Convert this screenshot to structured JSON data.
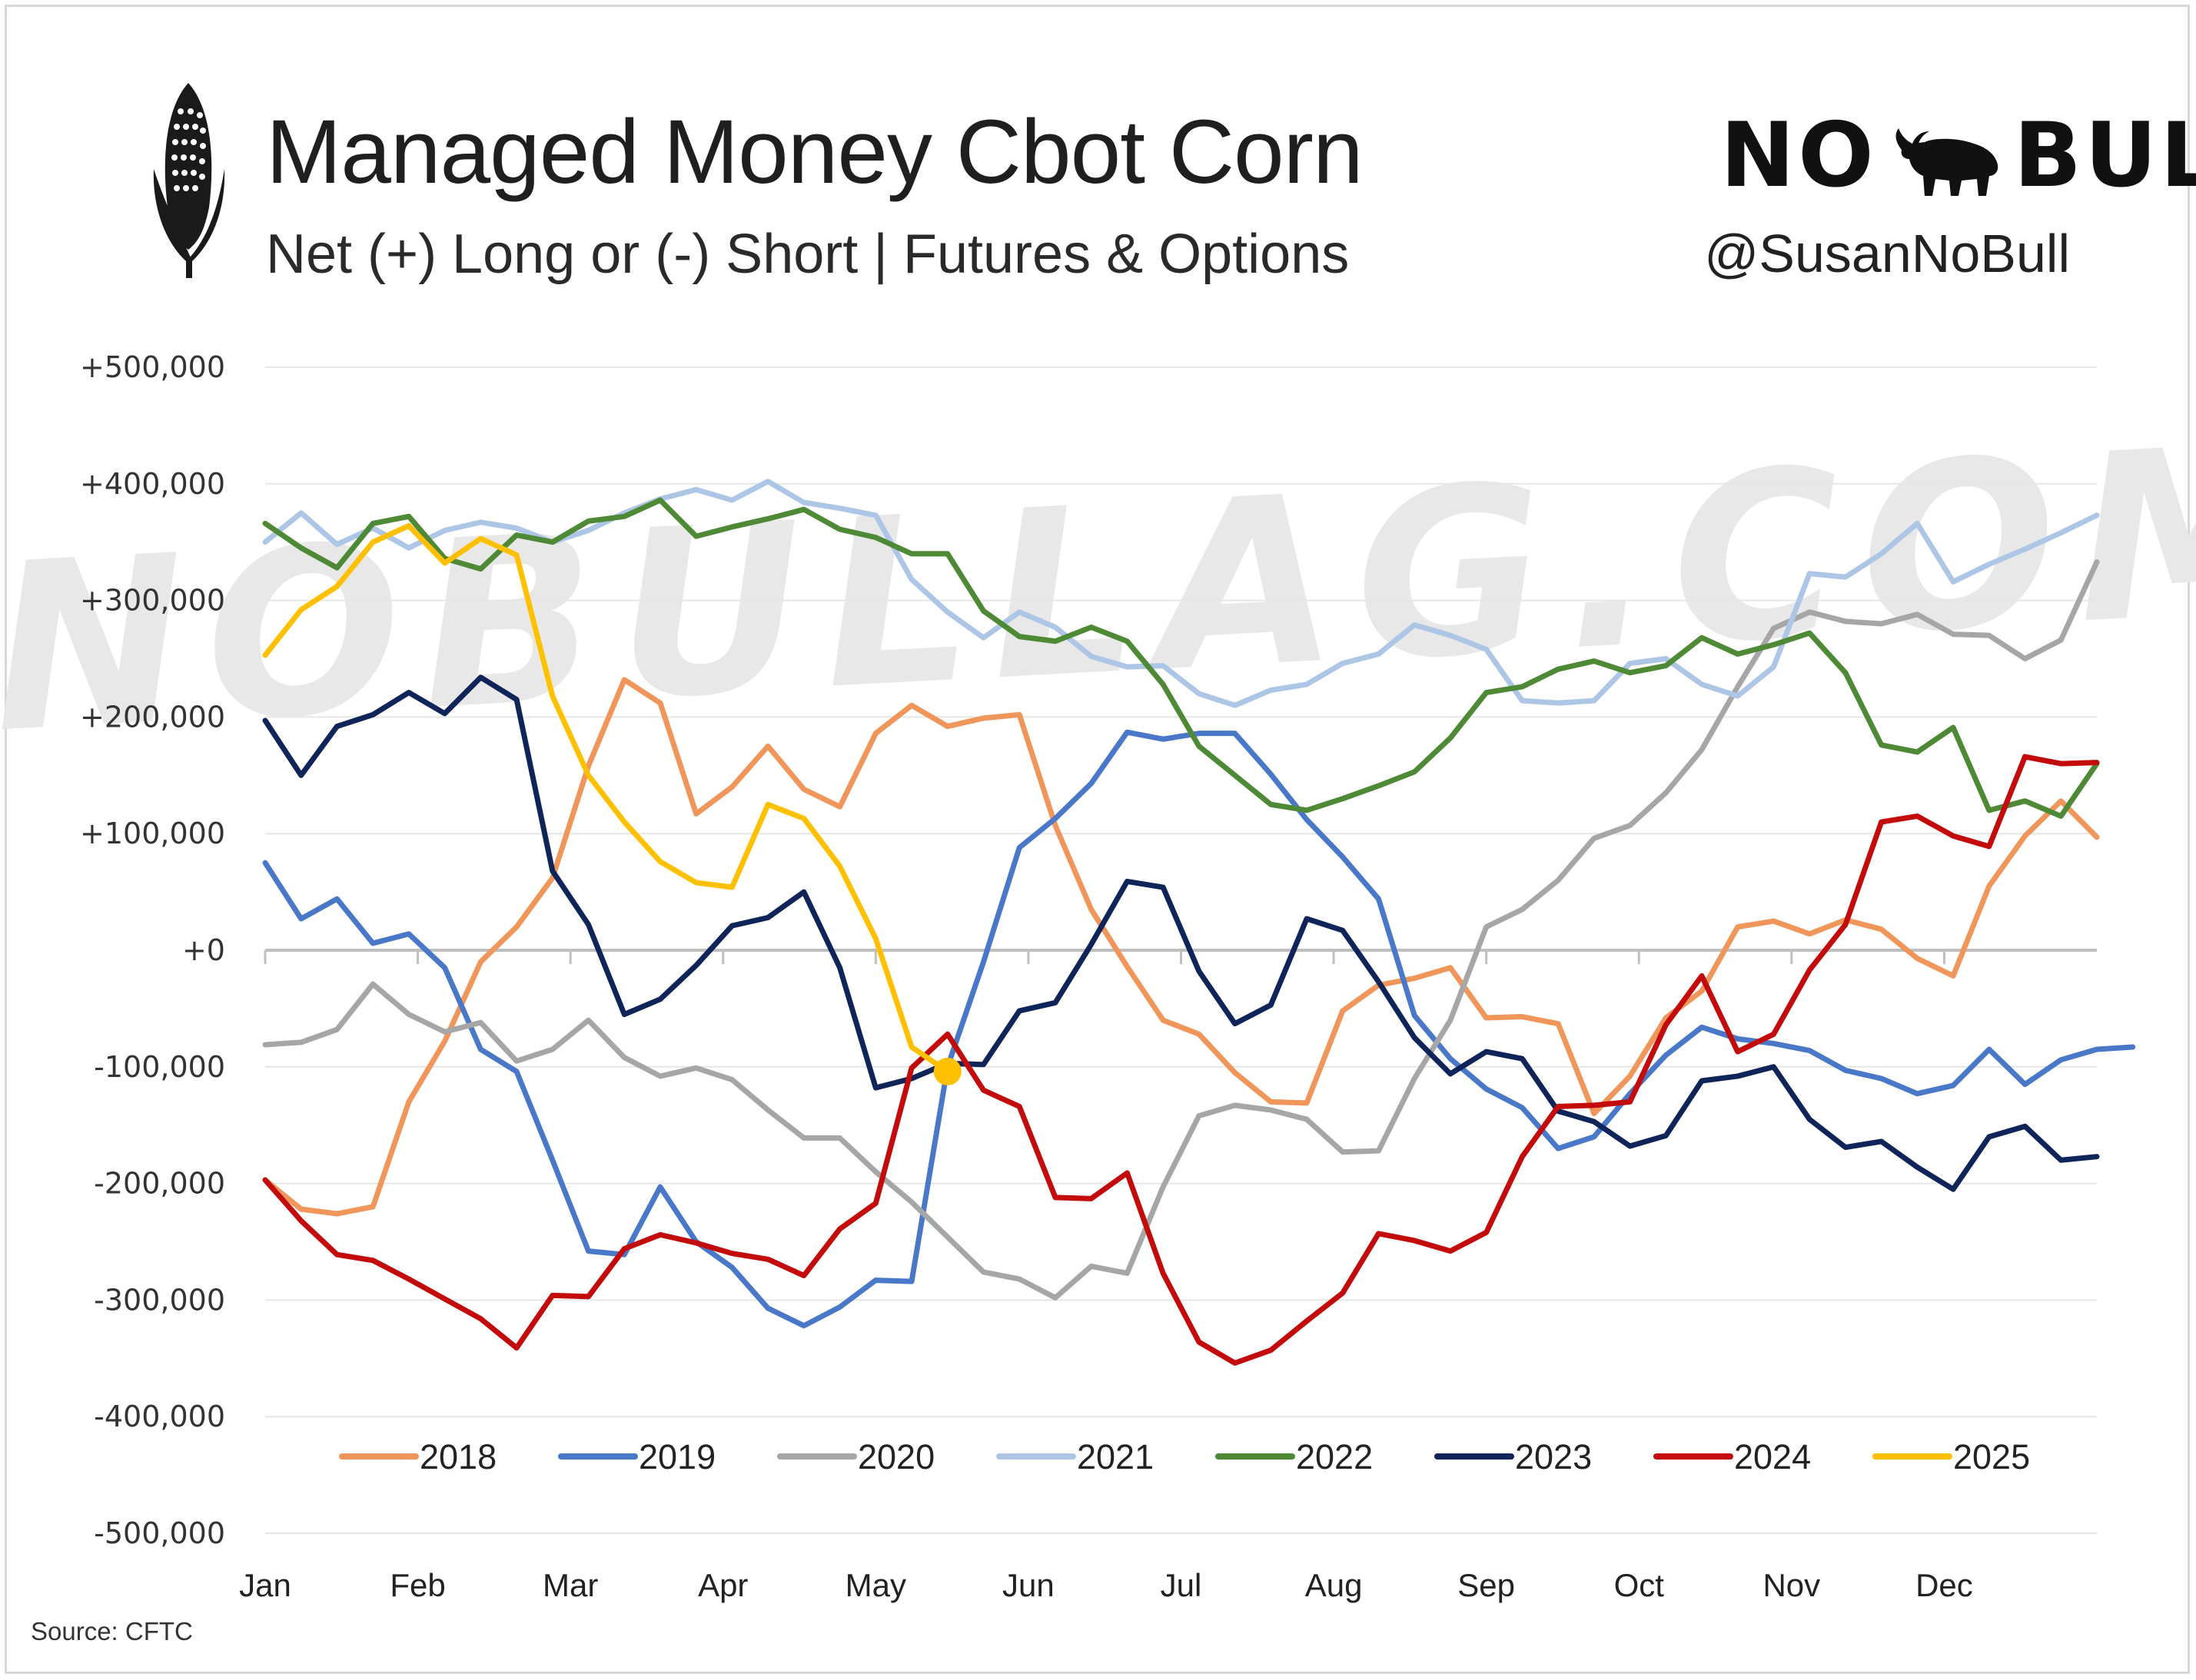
{
  "header": {
    "title": "Managed Money Cbot Corn",
    "subtitle": "Net (+) Long or (-) Short | Futures & Options",
    "brand_left": "NO",
    "brand_right": "BULL",
    "handle": "@SusanNoBull",
    "source": "Source: CFTC",
    "watermark": "NOBULLAG.COM"
  },
  "colors": {
    "2018": "#f0965a",
    "2019": "#4a78c8",
    "2020": "#a6a6a6",
    "2021": "#aec6e6",
    "2022": "#4e8a35",
    "2023": "#0f2459",
    "2024": "#c40b0b",
    "2025": "#ffc000"
  },
  "chart_data": {
    "type": "line",
    "title": "Managed Money Cbot Corn",
    "subtitle": "Net (+) Long or (-) Short | Futures & Options",
    "xlabel": "",
    "ylabel": "",
    "x_unit": "week of year",
    "x_range": [
      1,
      52
    ],
    "ylim": [
      -500000,
      500000
    ],
    "y_ticks": [
      500000,
      400000,
      300000,
      200000,
      100000,
      0,
      -100000,
      -200000,
      -300000,
      -400000,
      -500000
    ],
    "y_tick_labels": [
      "+500,000",
      "+400,000",
      "+300,000",
      "+200,000",
      "+100,000",
      "+0",
      "-100,000",
      "-200,000",
      "-300,000",
      "-400,000",
      "-500,000"
    ],
    "x_tick_labels": [
      "Jan",
      "Feb",
      "Mar",
      "Apr",
      "May",
      "Jun",
      "Jul",
      "Aug",
      "Sep",
      "Oct",
      "Nov",
      "Dec"
    ],
    "grid": "horizontal",
    "legend_position": "bottom",
    "series": [
      {
        "name": "2018",
        "values": [
          -197000,
          -222000,
          -226000,
          -220000,
          -130000,
          -78000,
          -10000,
          20000,
          62000,
          158000,
          232000,
          212000,
          117000,
          140000,
          175000,
          138000,
          123000,
          186000,
          210000,
          192000,
          199000,
          202000,
          107000,
          35000,
          -14000,
          -60000,
          -72000,
          -105000,
          -130000,
          -131000,
          -52000,
          -30000,
          -24000,
          -15000,
          -58000,
          -57000,
          -63000,
          -140000,
          -108000,
          -58000,
          -35000,
          20000,
          25000,
          14000,
          26000,
          18000,
          -7000,
          -22000,
          55000,
          98000,
          128000,
          97000
        ]
      },
      {
        "name": "2019",
        "values": [
          75000,
          27000,
          44000,
          6000,
          14000,
          -15000,
          -85000,
          -104000,
          -180000,
          -258000,
          -261000,
          -203000,
          -250000,
          -272000,
          -307000,
          -322000,
          -306000,
          -283000,
          -284000,
          -100000,
          -10000,
          88000,
          113000,
          143000,
          187000,
          181000,
          186000,
          186000,
          151000,
          112000,
          80000,
          44000,
          -56000,
          -93000,
          -119000,
          -135000,
          -170000,
          -160000,
          -123000,
          -90000,
          -66000,
          -76000,
          -80000,
          -86000,
          -103000,
          -110000,
          -123000,
          -116000,
          -85000,
          -115000,
          -94000,
          -85000,
          -83000
        ]
      },
      {
        "name": "2020",
        "values": [
          -81000,
          -79000,
          -68000,
          -29000,
          -55000,
          -70000,
          -62000,
          -95000,
          -85000,
          -60000,
          -92000,
          -108000,
          -101000,
          -111000,
          -137000,
          -161000,
          -161000,
          -190000,
          -216000,
          -246000,
          -276000,
          -282000,
          -298000,
          -271000,
          -277000,
          -203000,
          -142000,
          -133000,
          -137000,
          -145000,
          -173000,
          -172000,
          -110000,
          -60000,
          20000,
          35000,
          60000,
          96000,
          107000,
          135000,
          172000,
          226000,
          276000,
          290000,
          282000,
          280000,
          288000,
          271000,
          270000,
          250000,
          266000,
          333000
        ]
      },
      {
        "name": "2021",
        "values": [
          350000,
          375000,
          348000,
          362000,
          345000,
          360000,
          367000,
          362000,
          350000,
          360000,
          375000,
          387000,
          395000,
          386000,
          402000,
          384000,
          379000,
          373000,
          318000,
          290000,
          268000,
          290000,
          277000,
          252000,
          243000,
          244000,
          220000,
          210000,
          223000,
          228000,
          246000,
          254000,
          279000,
          270000,
          258000,
          214000,
          212000,
          214000,
          246000,
          250000,
          228000,
          218000,
          243000,
          323000,
          320000,
          340000,
          366000,
          316000,
          331000,
          344000,
          358000,
          373000
        ]
      },
      {
        "name": "2022",
        "values": [
          366000,
          345000,
          328000,
          366000,
          372000,
          336000,
          327000,
          356000,
          350000,
          368000,
          372000,
          386000,
          355000,
          363000,
          370000,
          378000,
          361000,
          354000,
          340000,
          340000,
          291000,
          269000,
          265000,
          277000,
          265000,
          228000,
          175000,
          150000,
          125000,
          120000,
          130000,
          141000,
          153000,
          182000,
          221000,
          226000,
          241000,
          248000,
          238000,
          244000,
          268000,
          254000,
          262000,
          272000,
          238000,
          176000,
          170000,
          191000,
          120000,
          128000,
          115000,
          160000
        ]
      },
      {
        "name": "2023",
        "values": [
          197000,
          150000,
          192000,
          202000,
          221000,
          203000,
          234000,
          215000,
          68000,
          22000,
          -55000,
          -42000,
          -13000,
          21000,
          28000,
          50000,
          -15000,
          -118000,
          -110000,
          -97000,
          -98000,
          -52000,
          -45000,
          5000,
          59000,
          54000,
          -18000,
          -63000,
          -47000,
          27000,
          17000,
          -27000,
          -75000,
          -106000,
          -87000,
          -93000,
          -138000,
          -147000,
          -168000,
          -159000,
          -112000,
          -108000,
          -100000,
          -145000,
          -169000,
          -164000,
          -186000,
          -205000,
          -160000,
          -151000,
          -180000,
          -177000
        ]
      },
      {
        "name": "2024",
        "values": [
          -197000,
          -232000,
          -261000,
          -266000,
          -282000,
          -299000,
          -316000,
          -341000,
          -296000,
          -297000,
          -256000,
          -244000,
          -251000,
          -260000,
          -265000,
          -279000,
          -239000,
          -217000,
          -101000,
          -72000,
          -120000,
          -134000,
          -212000,
          -213000,
          -191000,
          -277000,
          -336000,
          -354000,
          -343000,
          -318000,
          -294000,
          -243000,
          -249000,
          -258000,
          -242000,
          -177000,
          -134000,
          -133000,
          -130000,
          -64000,
          -22000,
          -87000,
          -72000,
          -17000,
          22000,
          110000,
          115000,
          98000,
          89000,
          166000,
          160000,
          161000
        ]
      },
      {
        "name": "2025",
        "values": [
          253000,
          292000,
          312000,
          350000,
          364000,
          332000,
          353000,
          339000,
          218000,
          150000,
          110000,
          76000,
          58000,
          54000,
          125000,
          113000,
          72000,
          10000,
          -83000,
          -104000
        ]
      }
    ],
    "highlight": {
      "series": "2025",
      "point_index": 19,
      "value": -104000
    }
  }
}
